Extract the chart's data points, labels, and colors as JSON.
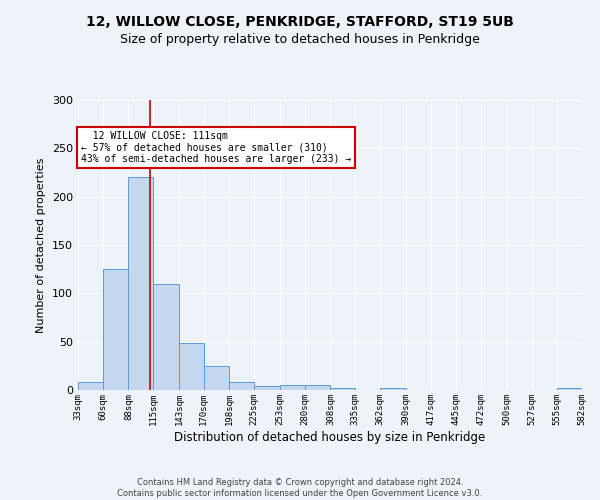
{
  "title_line1": "12, WILLOW CLOSE, PENKRIDGE, STAFFORD, ST19 5UB",
  "title_line2": "Size of property relative to detached houses in Penkridge",
  "xlabel": "Distribution of detached houses by size in Penkridge",
  "ylabel": "Number of detached properties",
  "property_size": 111,
  "annotation_line1": "  12 WILLOW CLOSE: 111sqm  ",
  "annotation_line2": "← 57% of detached houses are smaller (310)",
  "annotation_line3": "43% of semi-detached houses are larger (233) →",
  "footer_line1": "Contains HM Land Registry data © Crown copyright and database right 2024.",
  "footer_line2": "Contains public sector information licensed under the Open Government Licence v3.0.",
  "bin_edges": [
    33,
    60,
    88,
    115,
    143,
    170,
    198,
    225,
    253,
    280,
    308,
    335,
    362,
    390,
    417,
    445,
    472,
    500,
    527,
    555,
    582
  ],
  "bar_heights": [
    8,
    125,
    220,
    110,
    49,
    25,
    8,
    4,
    5,
    5,
    2,
    0,
    2,
    0,
    0,
    0,
    0,
    0,
    0,
    2
  ],
  "bar_color": "#c5d8f0",
  "bar_edge_color": "#5b9bd5",
  "vline_color": "#cc0000",
  "vline_x": 111,
  "ylim": [
    0,
    300
  ],
  "yticks": [
    0,
    50,
    100,
    150,
    200,
    250,
    300
  ],
  "background_color": "#eef2f9",
  "grid_color": "#ffffff",
  "annotation_box_edge": "#cc0000",
  "annotation_box_face": "#ffffff",
  "title_fontsize": 10,
  "subtitle_fontsize": 9,
  "ylabel_fontsize": 8,
  "xlabel_fontsize": 8.5,
  "ytick_fontsize": 8,
  "xtick_fontsize": 6.5,
  "footer_fontsize": 6
}
